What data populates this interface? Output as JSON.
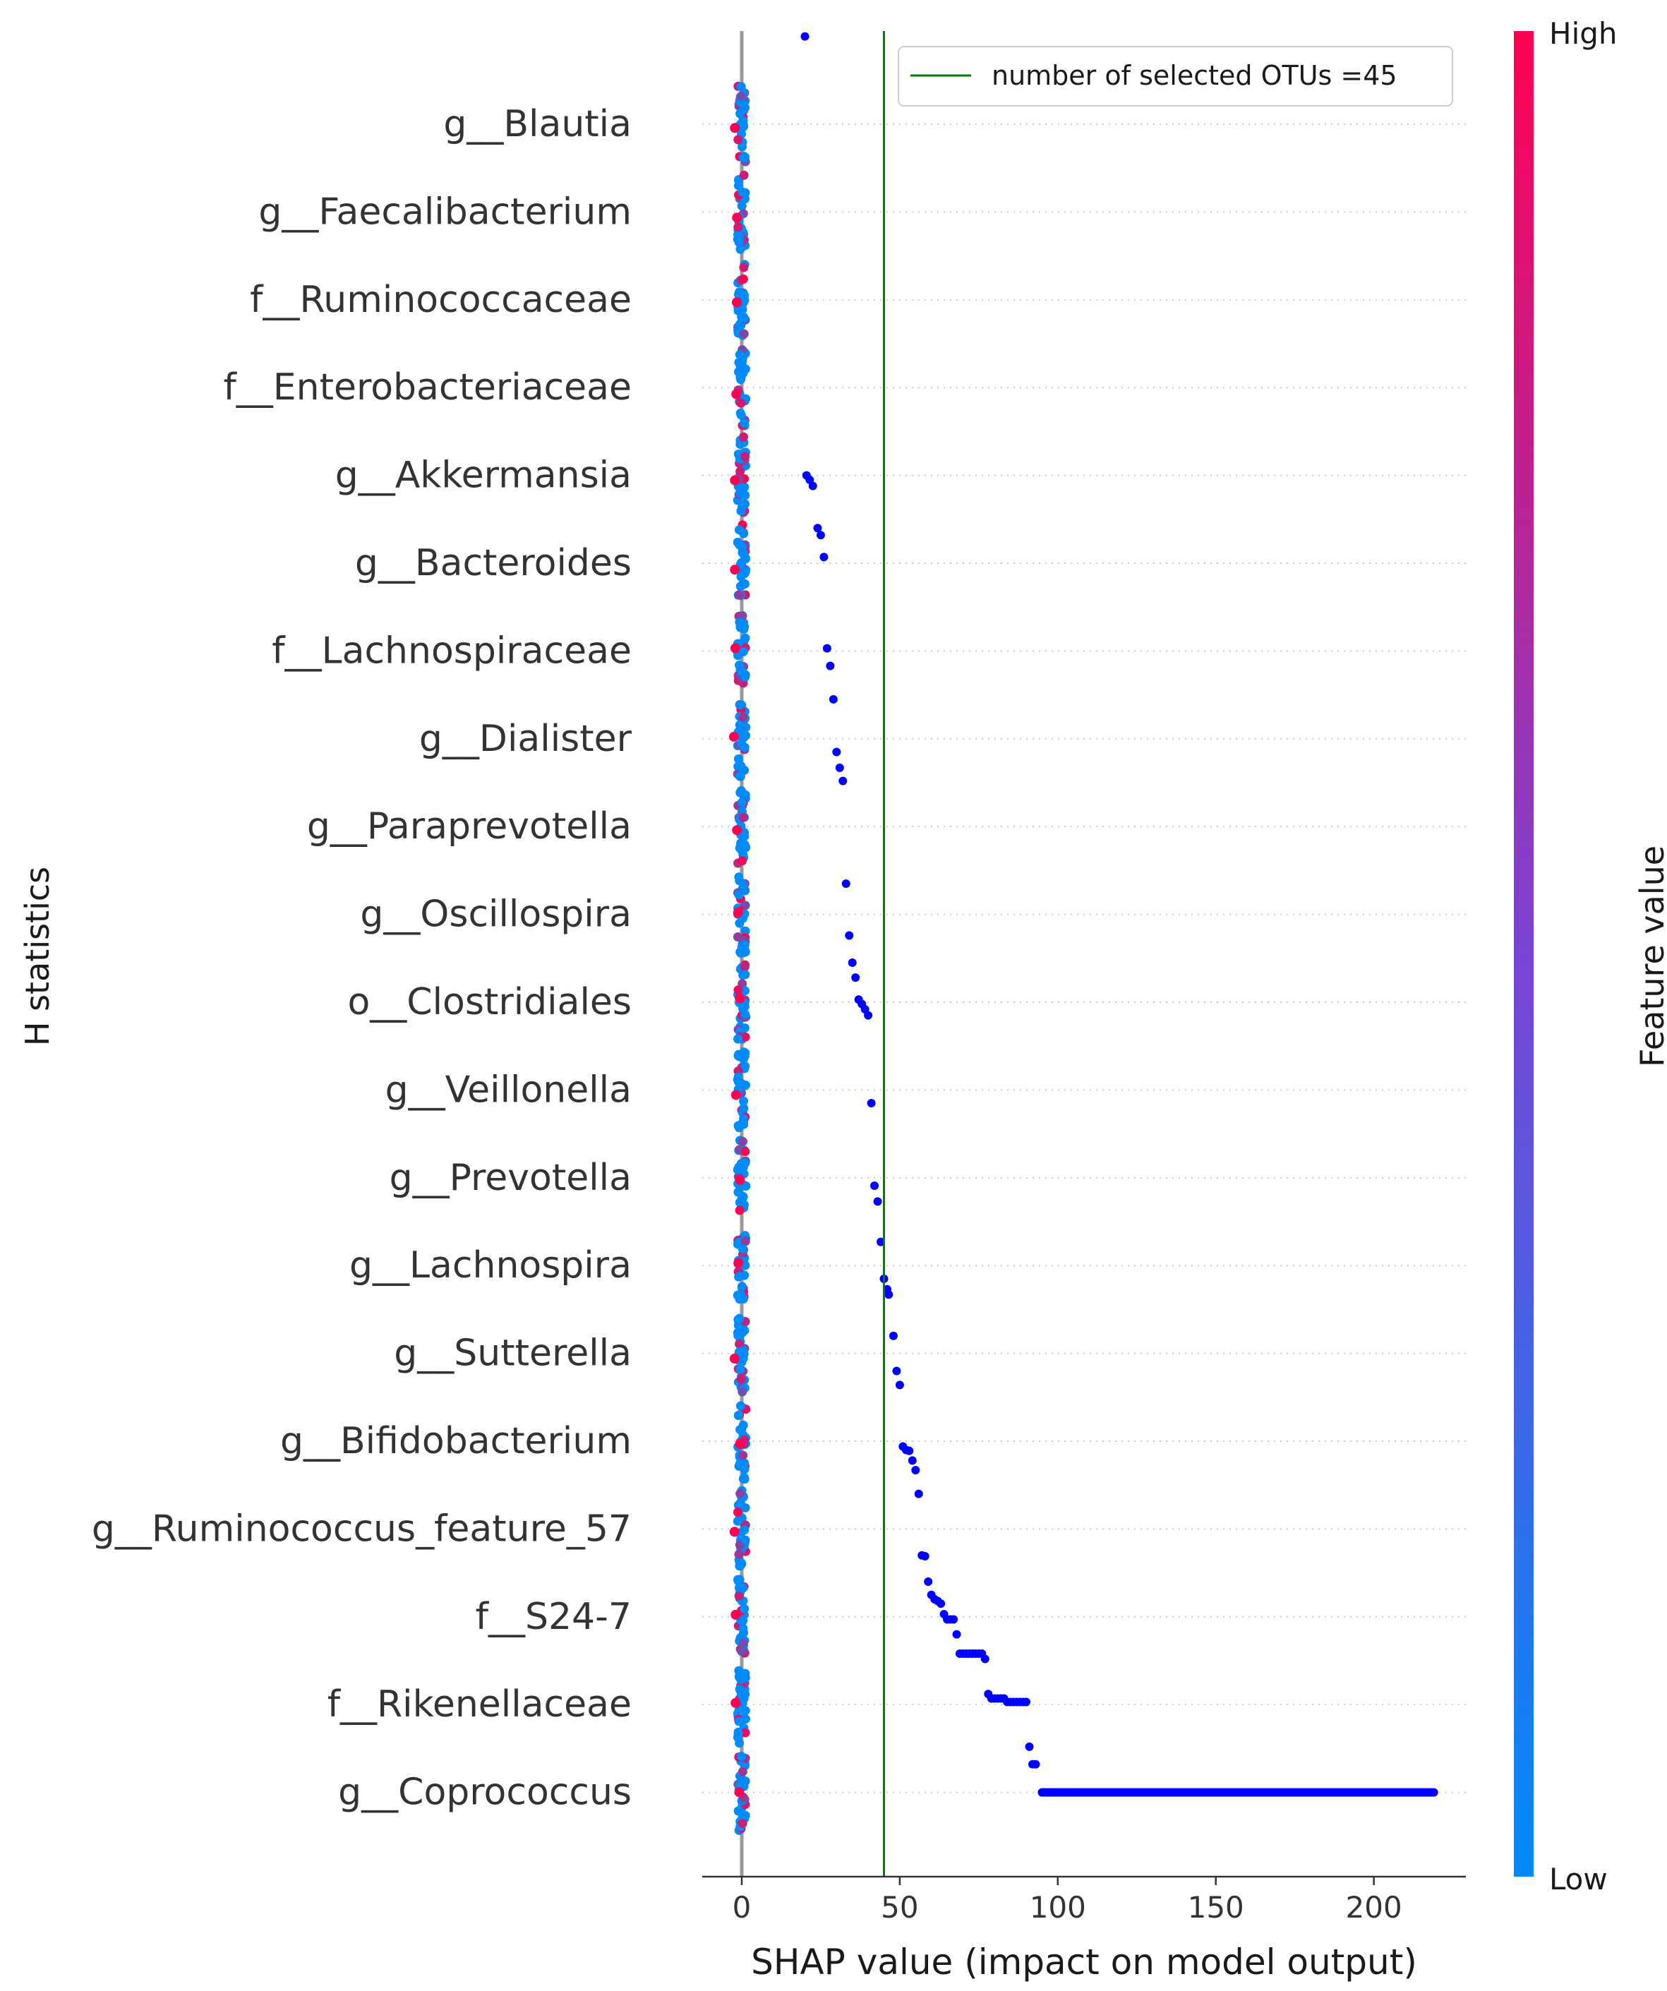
{
  "chart_data": {
    "type": "scatter",
    "xlabel": "SHAP value (impact on model output)",
    "ylabel": "H statistics",
    "xlim": [
      -13,
      230
    ],
    "xticks": [
      0,
      50,
      100,
      150,
      200
    ],
    "xtick_labels": [
      "0",
      "50",
      "100",
      "150",
      "200"
    ],
    "grid": "horizontal dotted at each category",
    "categories": [
      "g__Blautia",
      "g__Faecalibacterium",
      "f__Ruminococcaceae",
      "f__Enterobacteriaceae",
      "g__Akkermansia",
      "g__Bacteroides",
      "f__Lachnospiraceae",
      "g__Dialister",
      "g__Paraprevotella",
      "g__Oscillospira",
      "o__Clostridiales",
      "g__Veillonella",
      "g__Prevotella",
      "g__Lachnospira",
      "g__Sutterella",
      "g__Bifidobacterium",
      "g__Ruminococcus_feature_57",
      "f__S24-7",
      "f__Rikenellaceae",
      "g__Coprococcus"
    ],
    "reference_line": {
      "x": 45,
      "label": "number of selected OTUs =45",
      "color": "#008000"
    },
    "legend_position": "top-right",
    "colorbar": {
      "label": "Feature value",
      "high_label": "High",
      "low_label": "Low",
      "low_color": "#008bfb",
      "high_color": "#ff0052"
    },
    "highlight_points_color": "#0000ff",
    "highlight_points": [
      {
        "x": 20,
        "y_offset": -1.0
      },
      {
        "x": 20.5,
        "y_offset": 4.0
      },
      {
        "x": 21.5,
        "y_offset": 4.05
      },
      {
        "x": 22.5,
        "y_offset": 4.12
      },
      {
        "x": 24,
        "y_offset": 4.6
      },
      {
        "x": 25,
        "y_offset": 4.68
      },
      {
        "x": 26,
        "y_offset": 4.93
      },
      {
        "x": 27,
        "y_offset": 5.97
      },
      {
        "x": 28,
        "y_offset": 6.17
      },
      {
        "x": 29,
        "y_offset": 6.55
      },
      {
        "x": 30,
        "y_offset": 7.15
      },
      {
        "x": 31,
        "y_offset": 7.33
      },
      {
        "x": 32,
        "y_offset": 7.48
      },
      {
        "x": 33,
        "y_offset": 8.65
      },
      {
        "x": 34,
        "y_offset": 9.24
      },
      {
        "x": 35,
        "y_offset": 9.55
      },
      {
        "x": 36,
        "y_offset": 9.72
      },
      {
        "x": 37,
        "y_offset": 9.97
      },
      {
        "x": 38,
        "y_offset": 10.02
      },
      {
        "x": 39,
        "y_offset": 10.08
      },
      {
        "x": 40,
        "y_offset": 10.15
      },
      {
        "x": 41,
        "y_offset": 11.15
      },
      {
        "x": 42,
        "y_offset": 12.09
      },
      {
        "x": 43,
        "y_offset": 12.27
      },
      {
        "x": 44,
        "y_offset": 12.73
      },
      {
        "x": 45,
        "y_offset": 13.15
      },
      {
        "x": 46,
        "y_offset": 13.27
      },
      {
        "x": 46.5,
        "y_offset": 13.33
      },
      {
        "x": 48,
        "y_offset": 13.8
      },
      {
        "x": 49,
        "y_offset": 14.2
      },
      {
        "x": 50,
        "y_offset": 14.36
      },
      {
        "x": 51,
        "y_offset": 15.06
      },
      {
        "x": 52,
        "y_offset": 15.1
      },
      {
        "x": 53,
        "y_offset": 15.11
      },
      {
        "x": 54,
        "y_offset": 15.22
      },
      {
        "x": 55,
        "y_offset": 15.33
      },
      {
        "x": 56,
        "y_offset": 15.6
      },
      {
        "x": 57,
        "y_offset": 16.3
      },
      {
        "x": 58,
        "y_offset": 16.31
      },
      {
        "x": 59,
        "y_offset": 16.6
      },
      {
        "x": 60,
        "y_offset": 16.75
      },
      {
        "x": 61,
        "y_offset": 16.8
      },
      {
        "x": 62,
        "y_offset": 16.82
      },
      {
        "x": 63,
        "y_offset": 16.85
      },
      {
        "x": 64,
        "y_offset": 16.97
      },
      {
        "x": 65,
        "y_offset": 17.03
      },
      {
        "x": 66,
        "y_offset": 17.03
      },
      {
        "x": 67,
        "y_offset": 17.03
      },
      {
        "x": 68,
        "y_offset": 17.2
      },
      {
        "x": 69,
        "y_offset": 17.42
      },
      {
        "x": 70,
        "y_offset": 17.42
      },
      {
        "x": 71,
        "y_offset": 17.42
      },
      {
        "x": 72,
        "y_offset": 17.42
      },
      {
        "x": 73,
        "y_offset": 17.42
      },
      {
        "x": 74,
        "y_offset": 17.42
      },
      {
        "x": 75,
        "y_offset": 17.42
      },
      {
        "x": 76,
        "y_offset": 17.42
      },
      {
        "x": 77,
        "y_offset": 17.48
      },
      {
        "x": 78,
        "y_offset": 17.88
      },
      {
        "x": 79,
        "y_offset": 17.93
      },
      {
        "x": 80,
        "y_offset": 17.93
      },
      {
        "x": 81,
        "y_offset": 17.93
      },
      {
        "x": 82,
        "y_offset": 17.93
      },
      {
        "x": 83,
        "y_offset": 17.93
      },
      {
        "x": 84,
        "y_offset": 17.97
      },
      {
        "x": 85,
        "y_offset": 17.97
      },
      {
        "x": 86,
        "y_offset": 17.97
      },
      {
        "x": 87,
        "y_offset": 17.97
      },
      {
        "x": 88,
        "y_offset": 17.97
      },
      {
        "x": 89,
        "y_offset": 17.97
      },
      {
        "x": 90,
        "y_offset": 17.97
      },
      {
        "x": 91,
        "y_offset": 18.48
      },
      {
        "x": 92,
        "y_offset": 18.68
      },
      {
        "x": 93,
        "y_offset": 18.68
      }
    ],
    "highlight_tail": {
      "x_start": 95,
      "x_end": 219,
      "y_offset": 19.0
    }
  }
}
